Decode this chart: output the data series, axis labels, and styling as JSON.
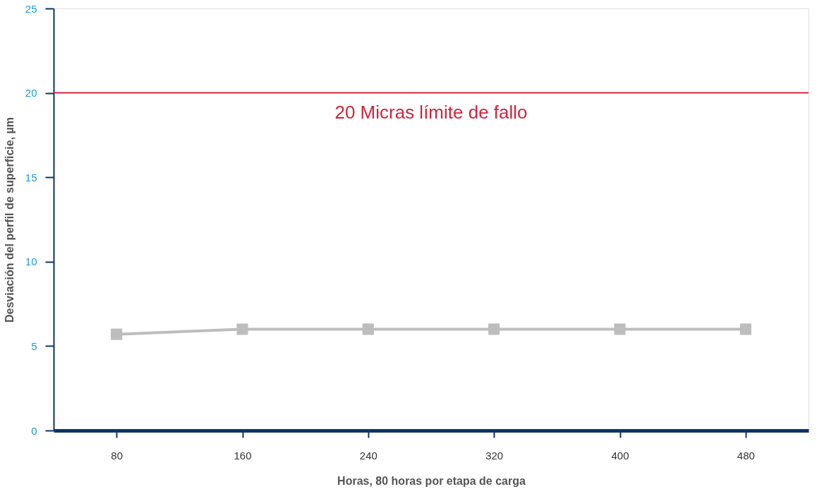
{
  "chart_data": {
    "type": "line",
    "xlabel": "Horas, 80 horas por etapa de carga",
    "ylabel": "Desviación del perfil de superficie, µm",
    "categories": [
      "80",
      "160",
      "240",
      "320",
      "400",
      "480"
    ],
    "series": [
      {
        "color": "#bdbdbd",
        "values": [
          5.7,
          6.0,
          6.0,
          6.0,
          6.0,
          6.0
        ]
      }
    ],
    "ylim": [
      0,
      25
    ],
    "yticks": [
      0,
      5,
      10,
      15,
      20,
      25
    ],
    "grid": false,
    "marker": "square",
    "line_style": "solid",
    "ref_lines": [
      {
        "axis": "y",
        "value": 20,
        "label": "20 Micras límite de fallo",
        "color": "#d0243c",
        "line_style": "solid"
      }
    ]
  }
}
